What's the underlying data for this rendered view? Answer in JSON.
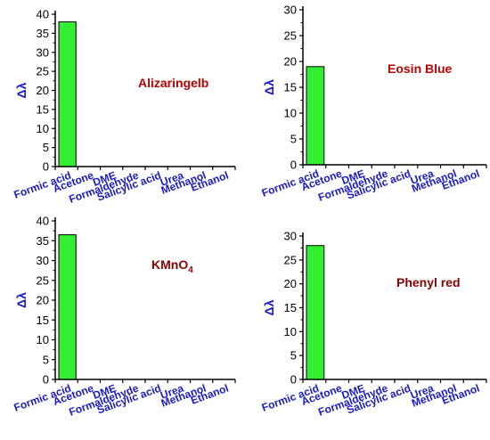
{
  "chart_data": [
    {
      "type": "bar",
      "annotation": "Alizaringelb",
      "ylabel": "Δλ",
      "categories": [
        "Formic acid",
        "Acetone",
        "DME",
        "Formaldehyde",
        "Salicylic acid",
        "Urea",
        "Methanol",
        "Ethanol"
      ],
      "values": [
        38,
        0,
        0,
        0,
        0,
        0,
        0,
        0
      ],
      "ylim": [
        0,
        40
      ],
      "yticks": [
        "0",
        "5",
        "10",
        "15",
        "20",
        "25",
        "30",
        "35",
        "40"
      ],
      "bar_color": "#33ee33",
      "annotation_color": "#c00000",
      "label_color": "#1a1acc"
    },
    {
      "type": "bar",
      "annotation": "Eosin Blue",
      "ylabel": "Δλ",
      "categories": [
        "Formic acid",
        "Acetone",
        "DME",
        "Formaldehyde",
        "Salicylic acid",
        "Urea",
        "Methanol",
        "Ethanol"
      ],
      "values": [
        19,
        0,
        0,
        0,
        0,
        0,
        0,
        0
      ],
      "ylim": [
        0,
        30
      ],
      "yticks": [
        "0",
        "5",
        "10",
        "15",
        "20",
        "25",
        "30"
      ],
      "bar_color": "#33ee33",
      "annotation_color": "#c00000",
      "label_color": "#1a1acc"
    },
    {
      "type": "bar",
      "annotation": "KMnO",
      "annotation_sub": "4",
      "ylabel": "Δλ",
      "categories": [
        "Formic acid",
        "Acetone",
        "DME",
        "Formaldehyde",
        "Salicylic acid",
        "Urea",
        "Methanol",
        "Ethanol"
      ],
      "values": [
        36.5,
        0,
        0,
        0,
        0,
        0,
        0,
        0
      ],
      "ylim": [
        0,
        40
      ],
      "yticks": [
        "0",
        "5",
        "10",
        "15",
        "20",
        "25",
        "30",
        "35",
        "40"
      ],
      "bar_color": "#33ee33",
      "annotation_color": "#8b0000",
      "label_color": "#1a1acc"
    },
    {
      "type": "bar",
      "annotation": "Phenyl red",
      "ylabel": "Δλ",
      "categories": [
        "Formic acid",
        "Acetone",
        "DME",
        "Formaldehyde",
        "Salicylic acid",
        "Urea",
        "Methanol",
        "Ethanol"
      ],
      "values": [
        28,
        0,
        0,
        0,
        0,
        0,
        0,
        0
      ],
      "ylim": [
        0,
        30
      ],
      "yticks": [
        "0",
        "5",
        "10",
        "15",
        "20",
        "25",
        "30"
      ],
      "bar_color": "#33ee33",
      "annotation_color": "#8b0000",
      "label_color": "#1a1acc"
    }
  ]
}
